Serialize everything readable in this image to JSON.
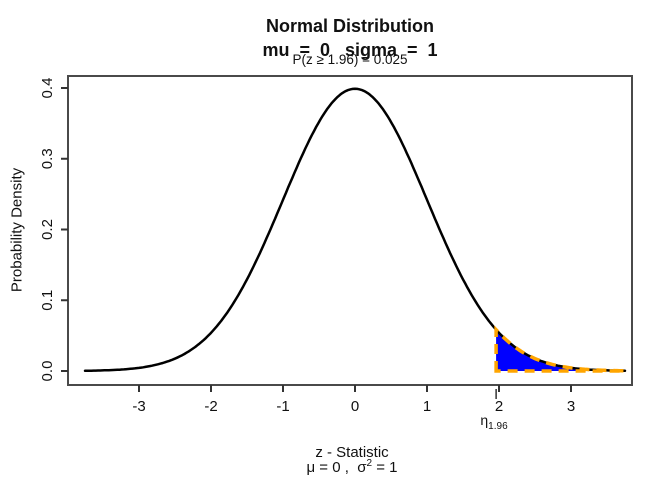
{
  "figure": {
    "title_line1": "Normal Distribution",
    "title_line2": "mu  =  0   sigma  =  1",
    "title_line3": "P(z ≥ 1.96) = 0.025",
    "ylabel": "Probability Density",
    "xlabel": "z - Statistic",
    "xlabel_sub": {
      "pre": "μ = 0 ,  σ",
      "sup": "2",
      "post": " = 1"
    }
  },
  "chart_data": {
    "type": "area",
    "title": "Normal Distribution",
    "subtitle": "mu = 0  sigma = 1",
    "annotation": "P(z ≥ 1.96) = 0.025",
    "xlabel": "z - Statistic",
    "xlabel_sub": "μ = 0 , σ² = 1",
    "ylabel": "Probability Density",
    "x_ticks": [
      -3,
      -2,
      -1,
      0,
      1,
      2,
      3
    ],
    "y_ticks": [
      0,
      0.1,
      0.2,
      0.3,
      0.4
    ],
    "y_tick_labels": [
      "0.0",
      "0.1",
      "0.2",
      "0.3",
      "0.4"
    ],
    "xlim": [
      -3.99,
      3.85
    ],
    "ylim": [
      0,
      0.42
    ],
    "grid": false,
    "legend": false,
    "curve": {
      "distribution": "normal",
      "mu": 0,
      "sigma": 1,
      "z_min": -3.75,
      "z_max": 3.75,
      "peak_density": 0.3989,
      "color": "#000000"
    },
    "sample_points": {
      "z": [
        -3.5,
        -3,
        -2.5,
        -2,
        -1.5,
        -1,
        -0.5,
        0,
        0.5,
        1,
        1.5,
        2,
        2.5,
        3,
        3.5
      ],
      "density": [
        0.0009,
        0.0044,
        0.0175,
        0.054,
        0.1295,
        0.242,
        0.3521,
        0.3989,
        0.3521,
        0.242,
        0.1295,
        0.054,
        0.0175,
        0.0044,
        0.0009
      ]
    },
    "shade": {
      "from": 1.96,
      "to": 3.75,
      "probability": 0.025,
      "fill_color": "#0000FF",
      "outline_color": "#FFA500",
      "outline_style": "dashed",
      "marker_label": "η",
      "marker_label_sub": "1.96"
    }
  },
  "colors": {
    "axis_box": "#4a4a4a",
    "tick": "#333333",
    "text": "#111111"
  }
}
